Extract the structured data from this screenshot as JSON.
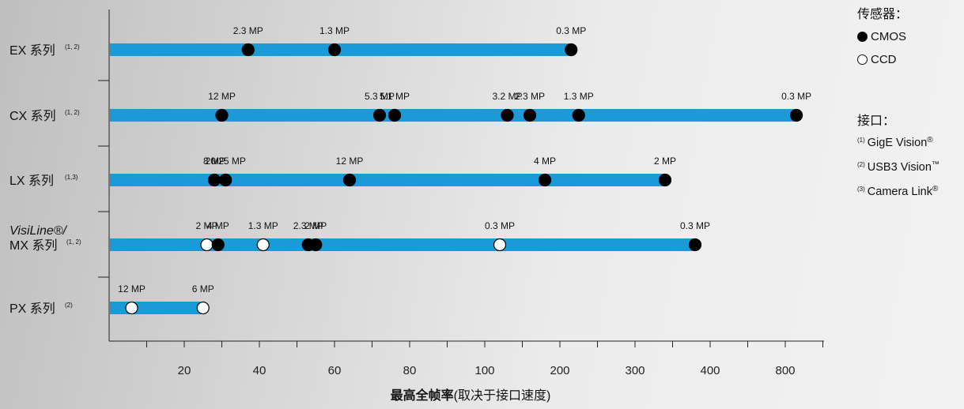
{
  "chart_data": {
    "type": "scatter",
    "xlabel_bold": "最高全帧率",
    "xlabel_rest": "(取决于接口速度)",
    "x_ticks": [
      {
        "label": "20",
        "value": 20
      },
      {
        "label": "40",
        "value": 40
      },
      {
        "label": "60",
        "value": 60
      },
      {
        "label": "80",
        "value": 80
      },
      {
        "label": "100",
        "value": 100
      },
      {
        "label": "200",
        "value": 200
      },
      {
        "label": "300",
        "value": 300
      },
      {
        "label": "400",
        "value": 400
      },
      {
        "label": "800",
        "value": 800
      }
    ],
    "series": [
      {
        "label": "EX 系列",
        "superscript": "(1, 2)",
        "bar_end": 215,
        "points": [
          {
            "x": 37,
            "label": "2.3 MP",
            "sensor": "CMOS"
          },
          {
            "x": 60,
            "label": "1.3 MP",
            "sensor": "CMOS"
          },
          {
            "x": 215,
            "label": "0.3 MP",
            "sensor": "CMOS"
          }
        ]
      },
      {
        "label": "CX 系列",
        "superscript": "(1, 2)",
        "bar_end": 830,
        "points": [
          {
            "x": 30,
            "label": "12 MP",
            "sensor": "CMOS"
          },
          {
            "x": 72,
            "label": "5.3 MP",
            "sensor": "CMOS"
          },
          {
            "x": 76,
            "label": "5.1 MP",
            "sensor": "CMOS"
          },
          {
            "x": 130,
            "label": "3.2 MP",
            "sensor": "CMOS"
          },
          {
            "x": 160,
            "label": "2.3 MP",
            "sensor": "CMOS"
          },
          {
            "x": 225,
            "label": "1.3 MP",
            "sensor": "CMOS"
          },
          {
            "x": 830,
            "label": "0.3 MP",
            "sensor": "CMOS"
          }
        ]
      },
      {
        "label": "LX 系列",
        "superscript": "(1,3)",
        "bar_end": 340,
        "points": [
          {
            "x": 28,
            "label": "8 MP",
            "sensor": "CMOS"
          },
          {
            "x": 31,
            "label": "20/25 MP",
            "sensor": "CMOS"
          },
          {
            "x": 64,
            "label": "12 MP",
            "sensor": "CMOS"
          },
          {
            "x": 180,
            "label": "4 MP",
            "sensor": "CMOS"
          },
          {
            "x": 340,
            "label": "2 MP",
            "sensor": "CMOS"
          }
        ]
      },
      {
        "label_italic": "VisiLine®/",
        "label": "MX 系列",
        "superscript": "(1, 2)",
        "bar_end": 380,
        "points": [
          {
            "x": 26,
            "label": "2 MP",
            "sensor": "CCD"
          },
          {
            "x": 29,
            "label": "4 MP",
            "sensor": "CMOS"
          },
          {
            "x": 41,
            "label": "1.3 MP",
            "sensor": "CCD"
          },
          {
            "x": 53,
            "label": "2.3 MP",
            "sensor": "CMOS"
          },
          {
            "x": 55,
            "label": "2 MP",
            "sensor": "CMOS"
          },
          {
            "x": 120,
            "label": "0.3 MP",
            "sensor": "CCD"
          },
          {
            "x": 380,
            "label": "0.3 MP",
            "sensor": "CMOS"
          }
        ]
      },
      {
        "label": "PX 系列",
        "superscript": "(2)",
        "bar_end": 25,
        "points": [
          {
            "x": 13,
            "label": "12 MP",
            "sensor": "CCD"
          },
          {
            "x": 25,
            "label": "6 MP",
            "sensor": "CCD"
          }
        ]
      }
    ],
    "colors": {
      "bar": "#1a9ad7",
      "cmos": "#000000",
      "ccd": "#ffffff"
    }
  },
  "legend": {
    "sensor_title": "传感器：",
    "cmos_label": "CMOS",
    "ccd_label": "CCD",
    "interface_title": "接口：",
    "interfaces": [
      {
        "num": "(1)",
        "name": "GigE Vision",
        "mark": "®"
      },
      {
        "num": "(2)",
        "name": "USB3 Vision",
        "mark": "™"
      },
      {
        "num": "(3)",
        "name": "Camera Link",
        "mark": "®"
      }
    ]
  }
}
